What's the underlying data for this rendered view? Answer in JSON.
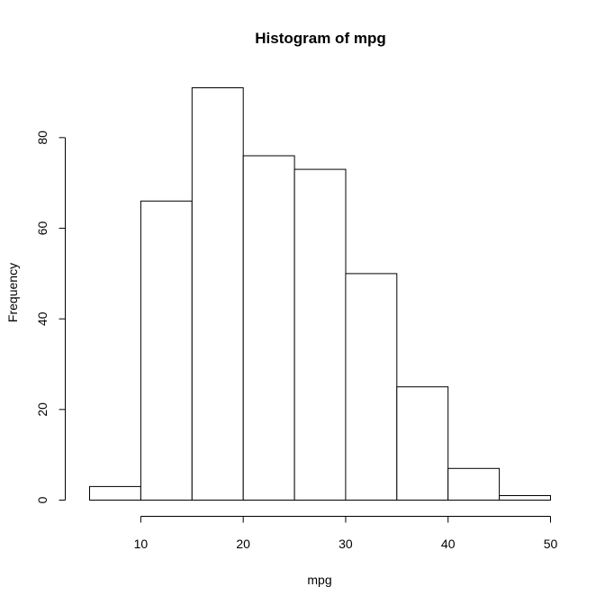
{
  "chart_data": {
    "type": "bar",
    "title": "Histogram of mpg",
    "xlabel": "mpg",
    "ylabel": "Frequency",
    "bins": [
      {
        "start": 5,
        "end": 10,
        "count": 3
      },
      {
        "start": 10,
        "end": 15,
        "count": 66
      },
      {
        "start": 15,
        "end": 20,
        "count": 91
      },
      {
        "start": 20,
        "end": 25,
        "count": 76
      },
      {
        "start": 25,
        "end": 30,
        "count": 73
      },
      {
        "start": 30,
        "end": 35,
        "count": 50
      },
      {
        "start": 35,
        "end": 40,
        "count": 25
      },
      {
        "start": 40,
        "end": 45,
        "count": 7
      },
      {
        "start": 45,
        "end": 50,
        "count": 1
      }
    ],
    "xlim": [
      5,
      50
    ],
    "ylim": [
      0,
      91
    ],
    "x_ticks": [
      10,
      20,
      30,
      40,
      50
    ],
    "y_ticks": [
      0,
      20,
      40,
      60,
      80
    ],
    "grid": false,
    "legend": "none"
  }
}
